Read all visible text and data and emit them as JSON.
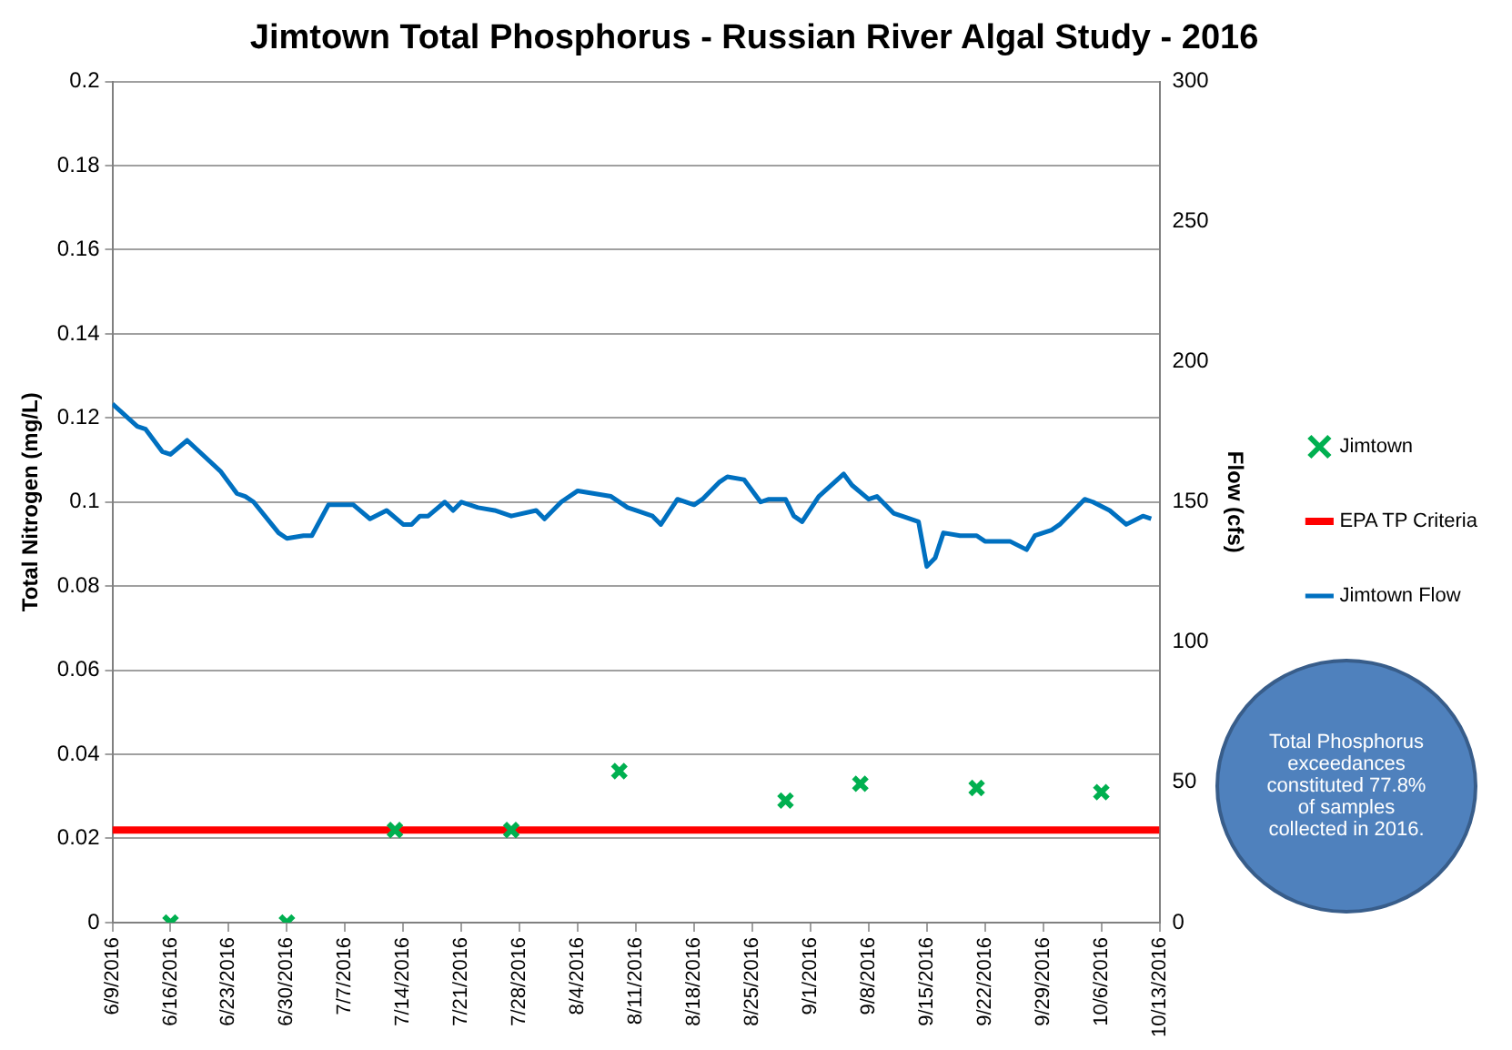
{
  "chart_data": {
    "type": "scatter",
    "title": "Jimtown Total Phosphorus - Russian River Algal Study - 2016",
    "ylabel": "Total Nitrogen (mg/L)",
    "y2label": "Flow (cfs)",
    "xlim": [
      "2016-06-09",
      "2016-10-13"
    ],
    "xticks": [
      {
        "value": "2016-06-09",
        "label": "6/9/2016"
      },
      {
        "value": "2016-06-16",
        "label": "6/16/2016"
      },
      {
        "value": "2016-06-23",
        "label": "6/23/2016"
      },
      {
        "value": "2016-06-30",
        "label": "6/30/2016"
      },
      {
        "value": "2016-07-07",
        "label": "7/7/2016"
      },
      {
        "value": "2016-07-14",
        "label": "7/14/2016"
      },
      {
        "value": "2016-07-21",
        "label": "7/21/2016"
      },
      {
        "value": "2016-07-28",
        "label": "7/28/2016"
      },
      {
        "value": "2016-08-04",
        "label": "8/4/2016"
      },
      {
        "value": "2016-08-11",
        "label": "8/11/2016"
      },
      {
        "value": "2016-08-18",
        "label": "8/18/2016"
      },
      {
        "value": "2016-08-25",
        "label": "8/25/2016"
      },
      {
        "value": "2016-09-01",
        "label": "9/1/2016"
      },
      {
        "value": "2016-09-08",
        "label": "9/8/2016"
      },
      {
        "value": "2016-09-15",
        "label": "9/15/2016"
      },
      {
        "value": "2016-09-22",
        "label": "9/22/2016"
      },
      {
        "value": "2016-09-29",
        "label": "9/29/2016"
      },
      {
        "value": "2016-10-06",
        "label": "10/6/2016"
      },
      {
        "value": "2016-10-13",
        "label": "10/13/2016"
      }
    ],
    "ylim": [
      0,
      0.2
    ],
    "yticks": [
      0,
      0.02,
      0.04,
      0.06,
      0.08,
      0.1,
      0.12,
      0.14,
      0.16,
      0.18,
      0.2
    ],
    "y2lim": [
      0,
      300
    ],
    "y2ticks": [
      0,
      50,
      100,
      150,
      200,
      250,
      300
    ],
    "grid": "y",
    "legend": "right",
    "series": [
      {
        "name": "Jimtown",
        "type": "scatter",
        "marker": "cross",
        "color": "#00b050",
        "x": [
          "2016-06-16",
          "2016-06-30",
          "2016-07-13",
          "2016-07-27",
          "2016-08-09",
          "2016-08-29",
          "2016-09-07",
          "2016-09-21",
          "2016-10-06"
        ],
        "values": [
          0,
          0,
          0.022,
          0.022,
          0.036,
          0.029,
          0.033,
          0.032,
          0.031
        ]
      },
      {
        "name": "EPA TP Criteria",
        "type": "line",
        "color": "#ff0000",
        "x": [
          "2016-06-09",
          "2016-10-13"
        ],
        "values": [
          0.022,
          0.022
        ]
      },
      {
        "name": "Jimtown Flow",
        "type": "line",
        "axis": "y2",
        "color": "#0070c0",
        "x": [
          "2016-06-09",
          "2016-06-12",
          "2016-06-13",
          "2016-06-15",
          "2016-06-16",
          "2016-06-18",
          "2016-06-22",
          "2016-06-24",
          "2016-06-25",
          "2016-06-26",
          "2016-06-29",
          "2016-06-30",
          "2016-07-02",
          "2016-07-03",
          "2016-07-05",
          "2016-07-08",
          "2016-07-10",
          "2016-07-12",
          "2016-07-14",
          "2016-07-15",
          "2016-07-16",
          "2016-07-17",
          "2016-07-19",
          "2016-07-20",
          "2016-07-21",
          "2016-07-23",
          "2016-07-25",
          "2016-07-27",
          "2016-07-30",
          "2016-07-31",
          "2016-08-02",
          "2016-08-04",
          "2016-08-06",
          "2016-08-08",
          "2016-08-10",
          "2016-08-11",
          "2016-08-13",
          "2016-08-14",
          "2016-08-16",
          "2016-08-18",
          "2016-08-19",
          "2016-08-21",
          "2016-08-22",
          "2016-08-24",
          "2016-08-26",
          "2016-08-27",
          "2016-08-29",
          "2016-08-30",
          "2016-08-31",
          "2016-09-02",
          "2016-09-05",
          "2016-09-06",
          "2016-09-08",
          "2016-09-09",
          "2016-09-11",
          "2016-09-12",
          "2016-09-14",
          "2016-09-15",
          "2016-09-16",
          "2016-09-17",
          "2016-09-19",
          "2016-09-21",
          "2016-09-22",
          "2016-09-23",
          "2016-09-25",
          "2016-09-27",
          "2016-09-28",
          "2016-09-30",
          "2016-10-01",
          "2016-10-03",
          "2016-10-04",
          "2016-10-05",
          "2016-10-07",
          "2016-10-09",
          "2016-10-11",
          "2016-10-12"
        ],
        "values": [
          185,
          177,
          176,
          168,
          167,
          172,
          161,
          153,
          152,
          150,
          139,
          137,
          138,
          138,
          149,
          149,
          144,
          147,
          142,
          142,
          145,
          145,
          150,
          147,
          150,
          148,
          147,
          145,
          147,
          144,
          150,
          154,
          153,
          152,
          148,
          147,
          145,
          142,
          151,
          149,
          151,
          157,
          159,
          158,
          150,
          151,
          151,
          145,
          143,
          152,
          160,
          156,
          151,
          152,
          146,
          145,
          143,
          127,
          130,
          139,
          138,
          138,
          136,
          136,
          136,
          133,
          138,
          140,
          142,
          148,
          151,
          150,
          147,
          142,
          145,
          144
        ]
      }
    ],
    "annotations": [
      "Total Phosphorus exceedances constituted 77.8% of samples collected in 2016."
    ]
  }
}
